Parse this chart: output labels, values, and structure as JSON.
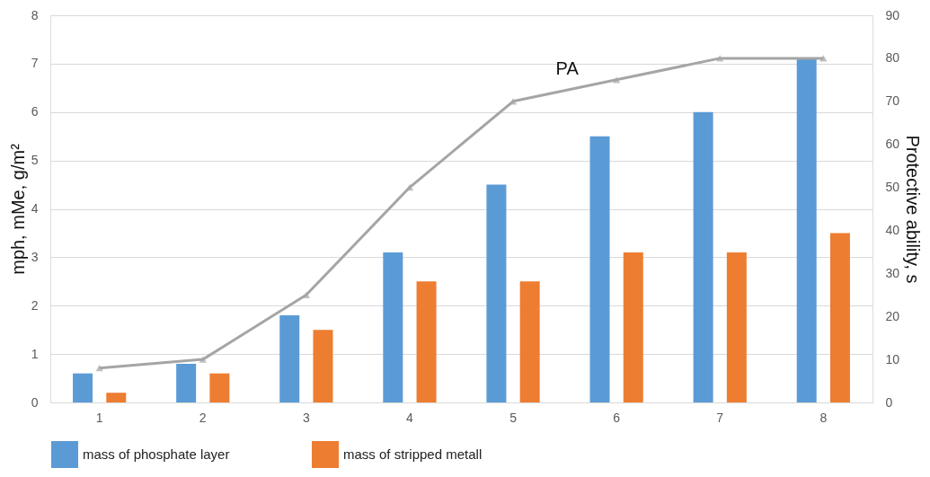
{
  "chart_data": {
    "type": "bar",
    "ylabel": "mph, mMe, g/m²",
    "y2label": "Protective ability, s",
    "categories": [
      "1",
      "2",
      "3",
      "4",
      "5",
      "6",
      "7",
      "8"
    ],
    "series": [
      {
        "name": "mass of phosphate layer",
        "color": "#5b9bd5",
        "values": [
          0.6,
          0.8,
          1.8,
          3.1,
          4.5,
          5.5,
          6.0,
          7.1
        ]
      },
      {
        "name": "mass of stripped metall",
        "color": "#ed7d31",
        "values": [
          0.2,
          0.6,
          1.5,
          2.5,
          2.5,
          3.1,
          3.1,
          3.5
        ]
      },
      {
        "name": "PA",
        "type": "line",
        "axis": "y2",
        "color": "#a5a5a5",
        "marker": "triangle",
        "values": [
          8,
          10,
          25,
          50,
          70,
          75,
          80,
          80
        ]
      }
    ],
    "ylim": [
      0,
      8
    ],
    "yticks": [
      0,
      1,
      2,
      3,
      4,
      5,
      6,
      7,
      8
    ],
    "y2lim": [
      0,
      90
    ],
    "y2ticks": [
      0,
      10,
      20,
      30,
      40,
      50,
      60,
      70,
      80,
      90
    ],
    "grid": "y",
    "legend": "bottom"
  }
}
